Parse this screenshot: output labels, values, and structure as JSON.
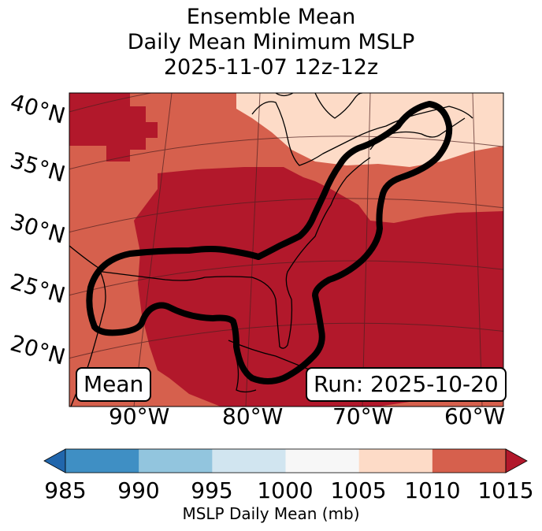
{
  "title": {
    "line1": "Ensemble Mean",
    "line2": "Daily Mean Minimum MSLP",
    "line3": "2025-11-07 12z-12z"
  },
  "map": {
    "lat_labels": [
      "40°N",
      "35°N",
      "30°N",
      "25°N",
      "20°N"
    ],
    "lon_labels": [
      "90°W",
      "80°W",
      "70°W",
      "60°W"
    ],
    "left_box": "Mean",
    "right_box": "Run: 2025-10-20",
    "contour_color": "#000000",
    "coastline_color": "#000000"
  },
  "colorbar": {
    "ticks": [
      "985",
      "990",
      "995",
      "1000",
      "1005",
      "1010",
      "1015"
    ],
    "colors": [
      "#2166ac",
      "#3f8fc4",
      "#92c5de",
      "#d1e5f0",
      "#f7f7f7",
      "#fddbc7",
      "#d6604d",
      "#b2182b"
    ],
    "label": "MSLP Daily Mean (mb)"
  }
}
